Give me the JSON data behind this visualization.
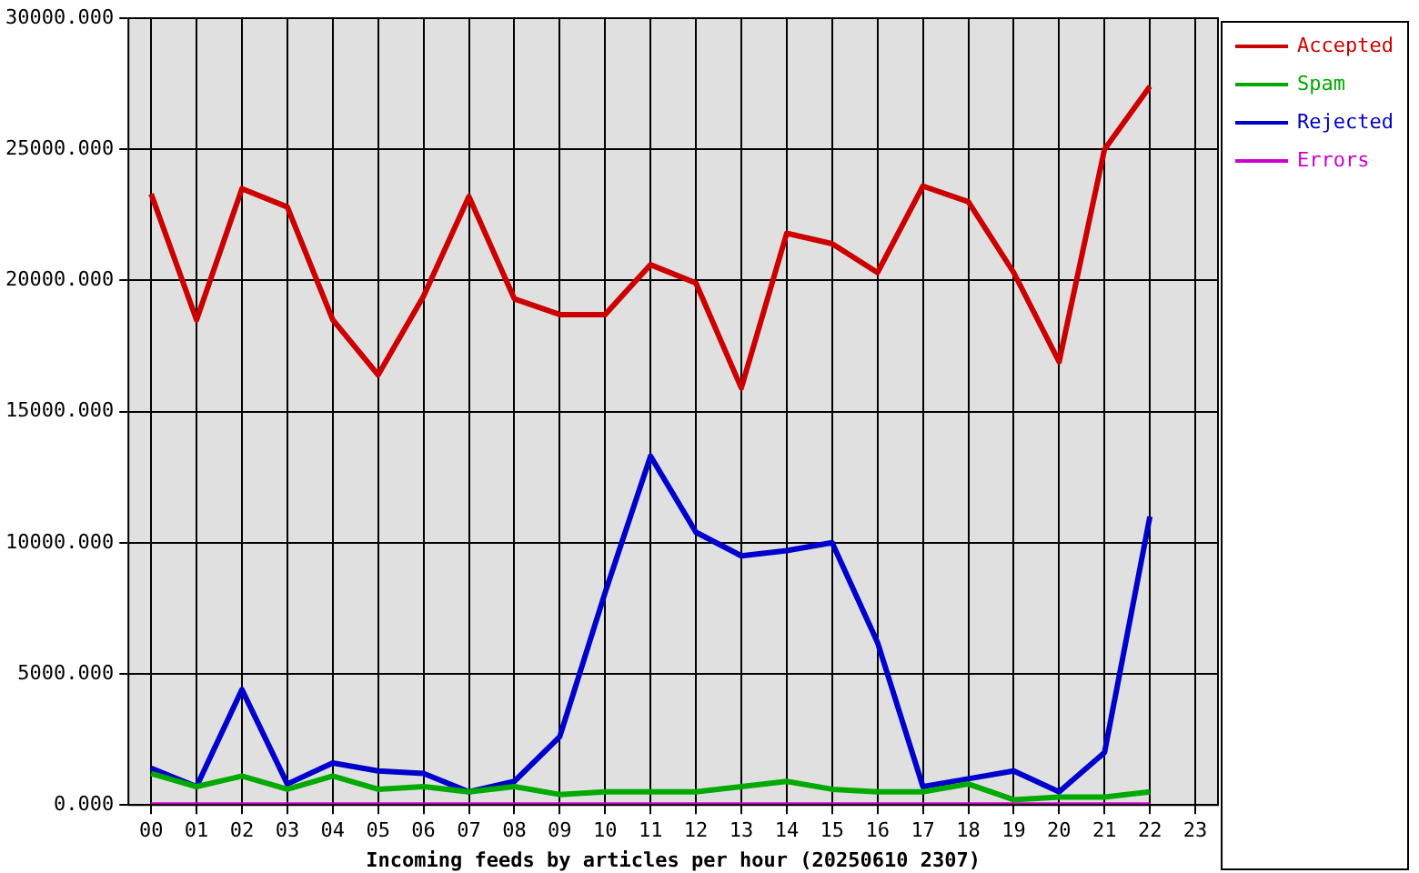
{
  "chart_data": {
    "type": "line",
    "xlabel": "Incoming feeds by articles per hour (20250610 2307)",
    "categories": [
      "00",
      "01",
      "02",
      "03",
      "04",
      "05",
      "06",
      "07",
      "08",
      "09",
      "10",
      "11",
      "12",
      "13",
      "14",
      "15",
      "16",
      "17",
      "18",
      "19",
      "20",
      "21",
      "22",
      "23"
    ],
    "series": [
      {
        "name": "Accepted",
        "color": "#cc0000",
        "values": [
          23300,
          18500,
          23500,
          22800,
          18500,
          16400,
          19400,
          23200,
          19300,
          18700,
          18700,
          20600,
          19900,
          15900,
          21800,
          21400,
          20300,
          23600,
          23000,
          20300,
          16900,
          25000,
          27400,
          null
        ]
      },
      {
        "name": "Spam",
        "color": "#00aa00",
        "values": [
          1200,
          700,
          1100,
          600,
          1100,
          600,
          700,
          500,
          700,
          400,
          500,
          500,
          500,
          700,
          900,
          600,
          500,
          500,
          800,
          200,
          300,
          300,
          500,
          null
        ]
      },
      {
        "name": "Rejected",
        "color": "#0000cc",
        "values": [
          1400,
          700,
          4400,
          800,
          1600,
          1300,
          1200,
          500,
          900,
          2600,
          8100,
          13300,
          10400,
          9500,
          9700,
          10000,
          6200,
          700,
          1000,
          1300,
          500,
          2000,
          11000,
          null
        ]
      },
      {
        "name": "Errors",
        "color": "#cc00cc",
        "values": [
          0,
          0,
          0,
          0,
          0,
          0,
          0,
          0,
          0,
          0,
          0,
          0,
          0,
          0,
          0,
          0,
          0,
          0,
          0,
          0,
          0,
          0,
          0,
          null
        ]
      }
    ],
    "ylim": [
      0,
      30000
    ],
    "yticks": [
      {
        "value": 0,
        "label": "0.000"
      },
      {
        "value": 5000,
        "label": "5000.000"
      },
      {
        "value": 10000,
        "label": "10000.000"
      },
      {
        "value": 15000,
        "label": "15000.000"
      },
      {
        "value": 20000,
        "label": "20000.000"
      },
      {
        "value": 25000,
        "label": "25000.000"
      },
      {
        "value": 30000,
        "label": "30000.000"
      }
    ],
    "grid": true,
    "legend": "top right",
    "marker": "none",
    "line_style": "solid"
  }
}
